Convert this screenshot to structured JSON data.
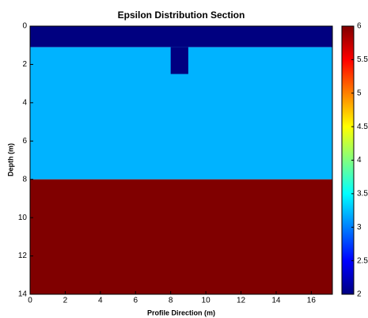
{
  "chart_data": {
    "type": "heatmap",
    "title": "Epsilon Distribution Section",
    "xlabel": "Profile Direction (m)",
    "ylabel": "Depth (m)",
    "xlim": [
      0,
      17.2
    ],
    "xticks": [
      0,
      2,
      4,
      6,
      8,
      10,
      12,
      14,
      16
    ],
    "ylim": [
      0,
      14
    ],
    "yticks": [
      0,
      2,
      4,
      6,
      8,
      10,
      12,
      14
    ],
    "y_reversed": true,
    "clim": [
      2,
      6
    ],
    "cticks": [
      2,
      2.5,
      3,
      3.5,
      4,
      4.5,
      5,
      5.5,
      6
    ],
    "colormap": "jet",
    "regions": [
      {
        "x": [
          0,
          17.2
        ],
        "y": [
          0,
          1.1
        ],
        "value": 2
      },
      {
        "x": [
          0,
          17.2
        ],
        "y": [
          1.1,
          8
        ],
        "value": 3.2
      },
      {
        "x": [
          8,
          9
        ],
        "y": [
          1.1,
          2.5
        ],
        "value": 2
      },
      {
        "x": [
          0,
          17.2
        ],
        "y": [
          8,
          14
        ],
        "value": 6
      }
    ]
  }
}
